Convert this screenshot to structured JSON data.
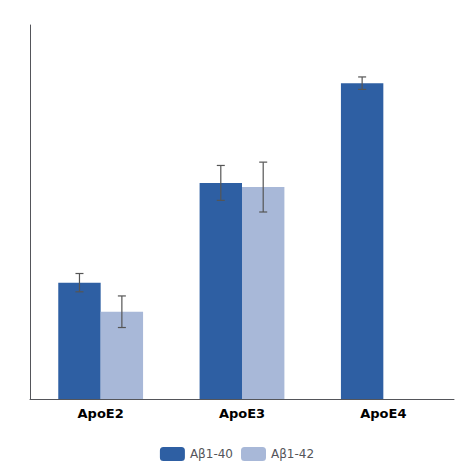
{
  "chart_data": {
    "type": "bar",
    "categories": [
      "ApoE2",
      "ApoE3",
      "ApoE4"
    ],
    "series": [
      {
        "name": "Aβ1-40",
        "color": "#2E5FA3",
        "values": [
          0.28,
          0.52,
          0.76
        ],
        "errors": [
          0.022,
          0.042,
          0.015
        ]
      },
      {
        "name": "Aβ1-42",
        "color": "#A8B8D8",
        "values": [
          0.21,
          0.51,
          null
        ],
        "errors": [
          0.038,
          0.06,
          null
        ]
      }
    ],
    "ylim": [
      0,
      0.9
    ],
    "yticks": [],
    "grid": false,
    "legend": "bottom",
    "tick_labels": "x"
  }
}
